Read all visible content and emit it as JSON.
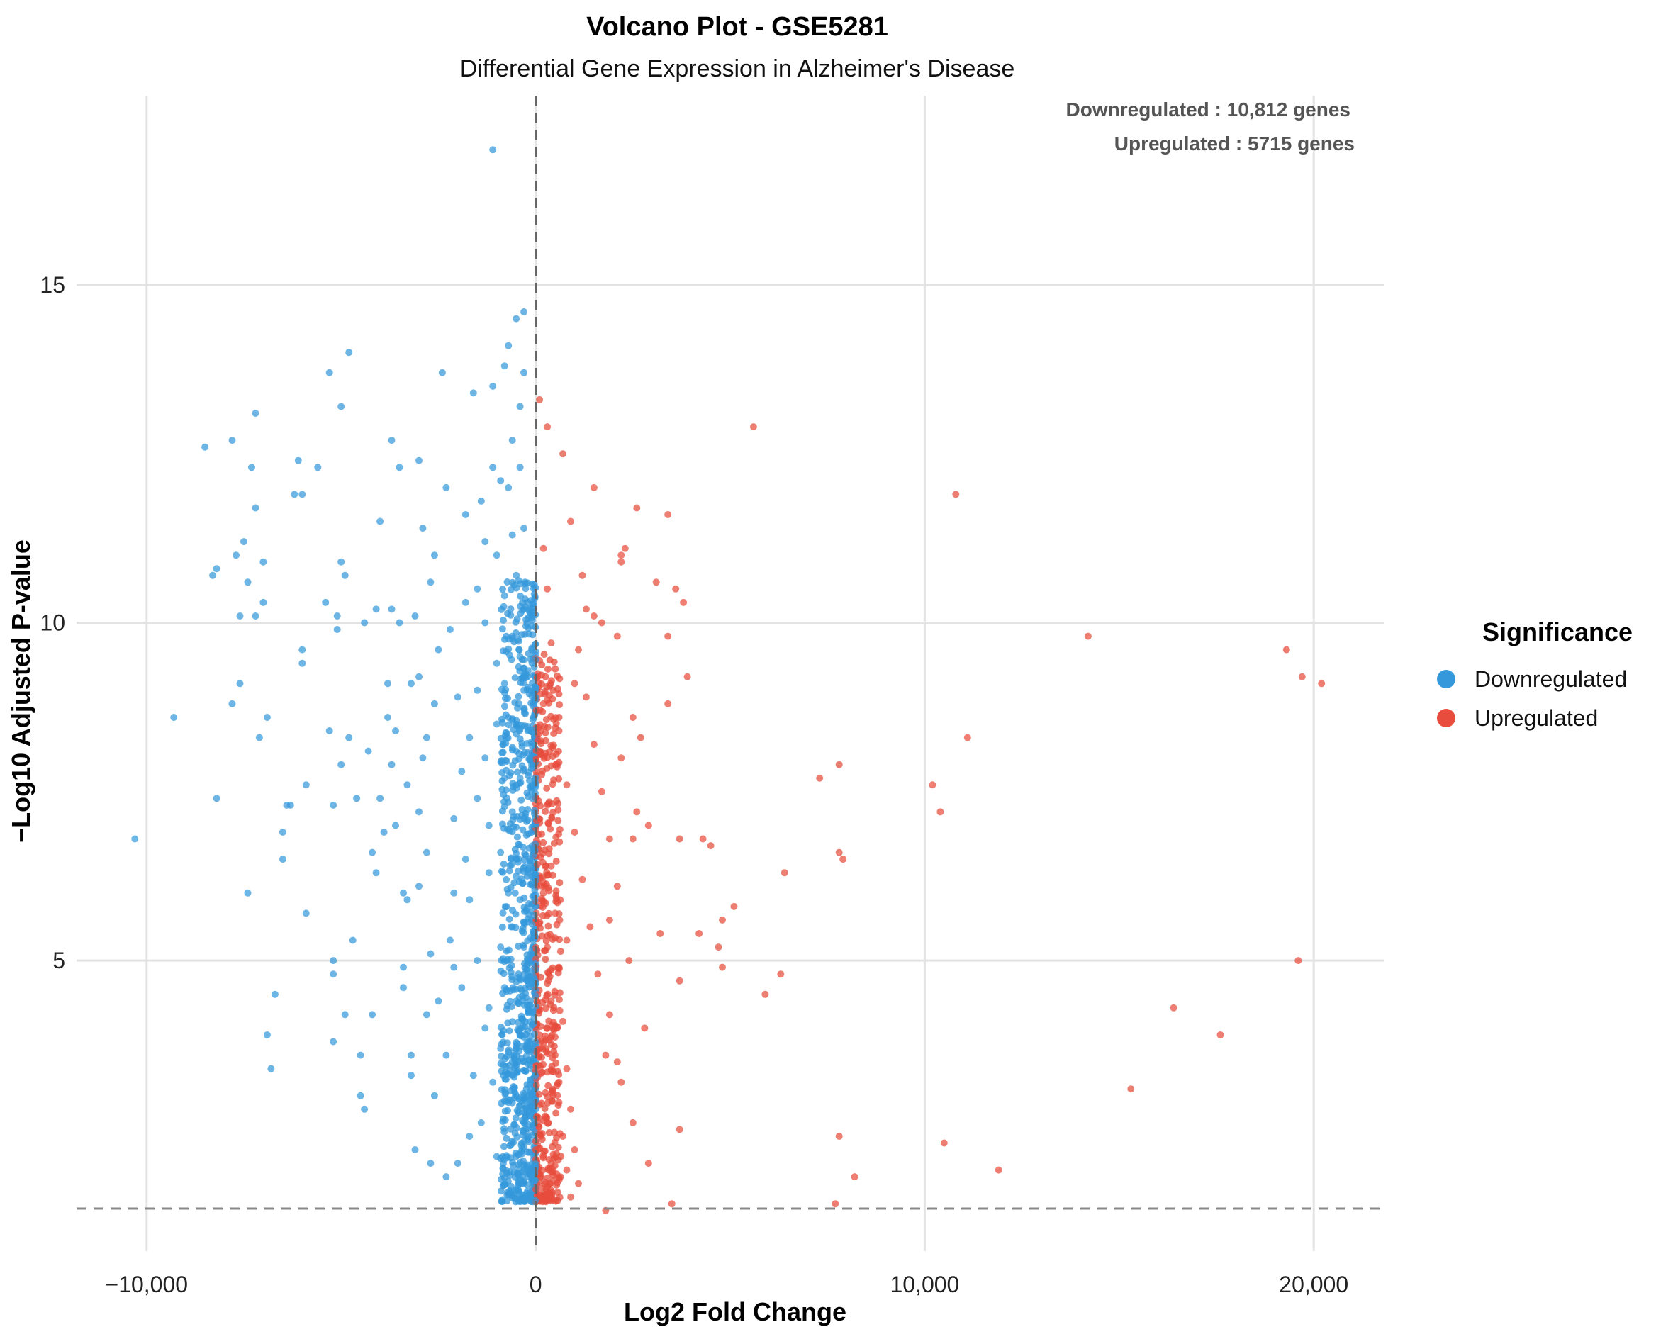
{
  "chart_data": {
    "type": "scatter",
    "title": "Volcano Plot - GSE5281",
    "subtitle": "Differential Gene Expression in Alzheimer's Disease",
    "xlabel": "Log2 Fold Change",
    "ylabel": "−Log10 Adjusted P-value",
    "xlim": [
      -11800,
      21800
    ],
    "ylim": [
      0.7,
      17.8
    ],
    "x_ticks": [
      -10000,
      0,
      10000,
      20000
    ],
    "x_tick_labels": [
      "−10,000",
      "0",
      "10,000",
      "20,000"
    ],
    "y_ticks": [
      5,
      10,
      15
    ],
    "y_tick_labels": [
      "5",
      "10",
      "15"
    ],
    "grid": true,
    "reference_lines": {
      "vertical_x": 0,
      "horizontal_y": 1.33
    },
    "annotations": {
      "downregulated": "Downregulated : 10,812 genes",
      "upregulated": "Upregulated : 5715 genes"
    },
    "legend": {
      "title": "Significance",
      "position": "right",
      "entries": [
        {
          "label": "Downregulated",
          "color": "#3498db"
        },
        {
          "label": "Upregulated",
          "color": "#e74c3c"
        }
      ]
    },
    "series": [
      {
        "name": "Downregulated",
        "color": "#3498db",
        "points": [
          [
            -10300,
            6.8
          ],
          [
            -9300,
            8.6
          ],
          [
            -8500,
            12.6
          ],
          [
            -8300,
            10.7
          ],
          [
            -8200,
            10.8
          ],
          [
            -8200,
            7.4
          ],
          [
            -7800,
            12.7
          ],
          [
            -7800,
            8.8
          ],
          [
            -7700,
            11.0
          ],
          [
            -7600,
            10.1
          ],
          [
            -7600,
            9.1
          ],
          [
            -7500,
            11.2
          ],
          [
            -7400,
            10.6
          ],
          [
            -7400,
            6.0
          ],
          [
            -7300,
            12.3
          ],
          [
            -7200,
            13.1
          ],
          [
            -7200,
            11.7
          ],
          [
            -7200,
            10.1
          ],
          [
            -7100,
            8.3
          ],
          [
            -7000,
            10.9
          ],
          [
            -7000,
            10.3
          ],
          [
            -6900,
            8.6
          ],
          [
            -6900,
            3.9
          ],
          [
            -6800,
            3.4
          ],
          [
            -6700,
            4.5
          ],
          [
            -6500,
            6.9
          ],
          [
            -6500,
            6.5
          ],
          [
            -6400,
            7.3
          ],
          [
            -6300,
            7.3
          ],
          [
            -6200,
            11.9
          ],
          [
            -6100,
            12.4
          ],
          [
            -6000,
            11.9
          ],
          [
            -6000,
            9.6
          ],
          [
            -6000,
            9.4
          ],
          [
            -5900,
            7.6
          ],
          [
            -5900,
            5.7
          ],
          [
            -5600,
            12.3
          ],
          [
            -5400,
            10.3
          ],
          [
            -5300,
            13.7
          ],
          [
            -5300,
            8.4
          ],
          [
            -5200,
            7.3
          ],
          [
            -5200,
            5.0
          ],
          [
            -5200,
            4.8
          ],
          [
            -5200,
            3.8
          ],
          [
            -5100,
            10.1
          ],
          [
            -5100,
            9.9
          ],
          [
            -5000,
            13.2
          ],
          [
            -5000,
            10.9
          ],
          [
            -5000,
            7.9
          ],
          [
            -4900,
            4.2
          ],
          [
            -4900,
            10.7
          ],
          [
            -4800,
            14.0
          ],
          [
            -4800,
            8.3
          ],
          [
            -4700,
            5.3
          ],
          [
            -4600,
            7.4
          ],
          [
            -4500,
            3.6
          ],
          [
            -4500,
            3.0
          ],
          [
            -4400,
            10.0
          ],
          [
            -4400,
            2.8
          ],
          [
            -4300,
            8.1
          ],
          [
            -4200,
            4.2
          ],
          [
            -4200,
            6.6
          ],
          [
            -4100,
            6.3
          ],
          [
            -4100,
            10.2
          ],
          [
            -4000,
            11.5
          ],
          [
            -4000,
            7.4
          ],
          [
            -3900,
            6.9
          ],
          [
            -3800,
            9.1
          ],
          [
            -3800,
            8.6
          ],
          [
            -3700,
            12.7
          ],
          [
            -3700,
            10.2
          ],
          [
            -3700,
            7.9
          ],
          [
            -3600,
            8.4
          ],
          [
            -3600,
            7.0
          ],
          [
            -3500,
            12.3
          ],
          [
            -3500,
            10.0
          ],
          [
            -3400,
            6.0
          ],
          [
            -3400,
            4.9
          ],
          [
            -3400,
            4.6
          ],
          [
            -3300,
            7.6
          ],
          [
            -3300,
            5.9
          ],
          [
            -3200,
            9.1
          ],
          [
            -3200,
            3.6
          ],
          [
            -3200,
            3.3
          ],
          [
            -3100,
            2.2
          ],
          [
            -3000,
            9.2
          ],
          [
            -3000,
            6.1
          ],
          [
            -2900,
            11.4
          ],
          [
            -2800,
            8.3
          ],
          [
            -2800,
            4.2
          ],
          [
            -2700,
            2.0
          ],
          [
            -2600,
            11.0
          ],
          [
            -2600,
            8.8
          ],
          [
            -2500,
            9.6
          ],
          [
            -2500,
            4.4
          ],
          [
            -2400,
            13.7
          ],
          [
            -2300,
            3.6
          ],
          [
            -2300,
            1.8
          ],
          [
            -2200,
            5.3
          ],
          [
            -2100,
            4.9
          ],
          [
            -2000,
            2.0
          ],
          [
            -1900,
            7.8
          ],
          [
            -1800,
            6.5
          ],
          [
            -1700,
            2.4
          ],
          [
            -1600,
            13.4
          ],
          [
            -1500,
            10.5
          ],
          [
            -1400,
            11.8
          ],
          [
            -1300,
            4.0
          ],
          [
            -1200,
            7.0
          ],
          [
            -1100,
            13.5
          ],
          [
            -1000,
            2.1
          ],
          [
            -1000,
            9.4
          ],
          [
            -900,
            12.1
          ],
          [
            -800,
            13.8
          ],
          [
            -700,
            14.1
          ],
          [
            -600,
            12.7
          ],
          [
            -500,
            14.5
          ],
          [
            -400,
            13.2
          ],
          [
            -300,
            14.6
          ],
          [
            -300,
            13.7
          ],
          [
            -1100,
            17.0
          ],
          [
            -3000,
            12.4
          ],
          [
            -3100,
            10.1
          ],
          [
            -2700,
            10.6
          ],
          [
            -2900,
            8.0
          ],
          [
            -3000,
            7.2
          ],
          [
            -2800,
            6.6
          ],
          [
            -2700,
            5.1
          ],
          [
            -2600,
            3.0
          ],
          [
            -2300,
            12.0
          ],
          [
            -2200,
            9.9
          ],
          [
            -2100,
            7.1
          ],
          [
            -2100,
            6.0
          ],
          [
            -2000,
            8.9
          ],
          [
            -1900,
            4.6
          ],
          [
            -1800,
            11.6
          ],
          [
            -1800,
            10.3
          ],
          [
            -1700,
            8.3
          ],
          [
            -1700,
            5.9
          ],
          [
            -1600,
            3.3
          ],
          [
            -1500,
            9.0
          ],
          [
            -1500,
            7.4
          ],
          [
            -1500,
            5.0
          ],
          [
            -1400,
            2.6
          ],
          [
            -1300,
            11.2
          ],
          [
            -1300,
            10.0
          ],
          [
            -1300,
            8.0
          ],
          [
            -1200,
            6.3
          ],
          [
            -1200,
            4.3
          ],
          [
            -1100,
            3.2
          ],
          [
            -1100,
            12.3
          ],
          [
            -1000,
            11.0
          ],
          [
            -1000,
            8.5
          ],
          [
            -900,
            6.6
          ],
          [
            -900,
            5.2
          ],
          [
            -900,
            3.7
          ],
          [
            -800,
            10.4
          ],
          [
            -800,
            9.1
          ],
          [
            -800,
            7.7
          ],
          [
            -800,
            4.6
          ],
          [
            -700,
            12.0
          ],
          [
            -700,
            8.6
          ],
          [
            -700,
            6.0
          ],
          [
            -700,
            2.9
          ],
          [
            -600,
            11.3
          ],
          [
            -600,
            9.8
          ],
          [
            -600,
            7.2
          ],
          [
            -600,
            5.5
          ],
          [
            -600,
            3.5
          ],
          [
            -500,
            10.7
          ],
          [
            -500,
            8.1
          ],
          [
            -500,
            6.5
          ],
          [
            -500,
            4.4
          ],
          [
            -500,
            2.1
          ],
          [
            -400,
            12.3
          ],
          [
            -400,
            9.5
          ],
          [
            -400,
            7.7
          ],
          [
            -400,
            5.9
          ],
          [
            -400,
            3.9
          ],
          [
            -300,
            11.4
          ],
          [
            -300,
            9.0
          ],
          [
            -300,
            7.1
          ],
          [
            -300,
            5.2
          ],
          [
            -300,
            3.0
          ],
          [
            -200,
            10.3
          ],
          [
            -200,
            8.4
          ],
          [
            -200,
            6.3
          ],
          [
            -200,
            4.8
          ],
          [
            -200,
            2.5
          ],
          [
            -100,
            9.6
          ],
          [
            -100,
            7.5
          ],
          [
            -100,
            5.6
          ],
          [
            -100,
            4.0
          ],
          [
            -100,
            1.8
          ]
        ]
      },
      {
        "name": "Upregulated",
        "color": "#e74c3c",
        "points": [
          [
            100,
            13.3
          ],
          [
            300,
            12.9
          ],
          [
            700,
            12.5
          ],
          [
            1500,
            12.0
          ],
          [
            900,
            11.5
          ],
          [
            2600,
            11.7
          ],
          [
            3400,
            11.6
          ],
          [
            10800,
            11.9
          ],
          [
            5600,
            12.9
          ],
          [
            2200,
            11.0
          ],
          [
            2300,
            11.1
          ],
          [
            2200,
            10.9
          ],
          [
            3100,
            10.6
          ],
          [
            3600,
            10.5
          ],
          [
            3800,
            10.3
          ],
          [
            1300,
            10.2
          ],
          [
            1500,
            10.1
          ],
          [
            1700,
            10.0
          ],
          [
            3400,
            9.8
          ],
          [
            14200,
            9.8
          ],
          [
            19300,
            9.6
          ],
          [
            19700,
            9.2
          ],
          [
            20200,
            9.1
          ],
          [
            2100,
            9.8
          ],
          [
            3900,
            9.2
          ],
          [
            2500,
            8.6
          ],
          [
            3400,
            8.8
          ],
          [
            11100,
            8.3
          ],
          [
            2700,
            8.3
          ],
          [
            2200,
            8.0
          ],
          [
            7800,
            7.9
          ],
          [
            7300,
            7.7
          ],
          [
            10200,
            7.6
          ],
          [
            10400,
            7.2
          ],
          [
            2600,
            7.2
          ],
          [
            2900,
            7.0
          ],
          [
            2500,
            6.8
          ],
          [
            3700,
            6.8
          ],
          [
            4300,
            6.8
          ],
          [
            4500,
            6.7
          ],
          [
            7800,
            6.6
          ],
          [
            7900,
            6.5
          ],
          [
            6400,
            6.3
          ],
          [
            5100,
            5.8
          ],
          [
            4800,
            5.6
          ],
          [
            4200,
            5.4
          ],
          [
            3200,
            5.4
          ],
          [
            1900,
            5.6
          ],
          [
            2400,
            5.0
          ],
          [
            4700,
            5.2
          ],
          [
            4800,
            4.9
          ],
          [
            6300,
            4.8
          ],
          [
            5900,
            4.5
          ],
          [
            3700,
            4.7
          ],
          [
            19600,
            5.0
          ],
          [
            16400,
            4.3
          ],
          [
            17600,
            3.9
          ],
          [
            15300,
            3.1
          ],
          [
            10500,
            2.3
          ],
          [
            11900,
            1.9
          ],
          [
            7800,
            2.4
          ],
          [
            8200,
            1.8
          ],
          [
            3700,
            2.5
          ],
          [
            2900,
            2.0
          ],
          [
            2500,
            2.6
          ],
          [
            2800,
            4.0
          ],
          [
            2200,
            3.2
          ],
          [
            1800,
            3.6
          ],
          [
            7700,
            1.4
          ],
          [
            3500,
            1.4
          ],
          [
            1800,
            1.3
          ],
          [
            200,
            11.1
          ],
          [
            300,
            10.5
          ],
          [
            400,
            9.7
          ],
          [
            600,
            8.4
          ],
          [
            800,
            7.6
          ],
          [
            1000,
            6.9
          ],
          [
            1200,
            6.2
          ],
          [
            1400,
            5.5
          ],
          [
            1600,
            4.8
          ],
          [
            1900,
            4.2
          ],
          [
            2100,
            3.5
          ],
          [
            200,
            8.8
          ],
          [
            300,
            7.3
          ],
          [
            400,
            6.4
          ],
          [
            500,
            5.7
          ],
          [
            600,
            4.9
          ],
          [
            700,
            4.1
          ],
          [
            800,
            3.4
          ],
          [
            900,
            2.8
          ],
          [
            1000,
            2.2
          ],
          [
            1100,
            1.7
          ],
          [
            200,
            6.0
          ],
          [
            300,
            5.2
          ],
          [
            400,
            4.4
          ],
          [
            500,
            3.6
          ],
          [
            600,
            2.9
          ],
          [
            700,
            2.4
          ],
          [
            800,
            1.9
          ],
          [
            900,
            1.5
          ],
          [
            1100,
            9.6
          ],
          [
            1300,
            8.9
          ],
          [
            1500,
            8.2
          ],
          [
            1700,
            7.5
          ],
          [
            1900,
            6.8
          ],
          [
            2100,
            6.1
          ],
          [
            1200,
            10.7
          ],
          [
            1000,
            9.1
          ],
          [
            800,
            5.3
          ],
          [
            600,
            3.2
          ],
          [
            400,
            2.0
          ]
        ]
      }
    ]
  }
}
